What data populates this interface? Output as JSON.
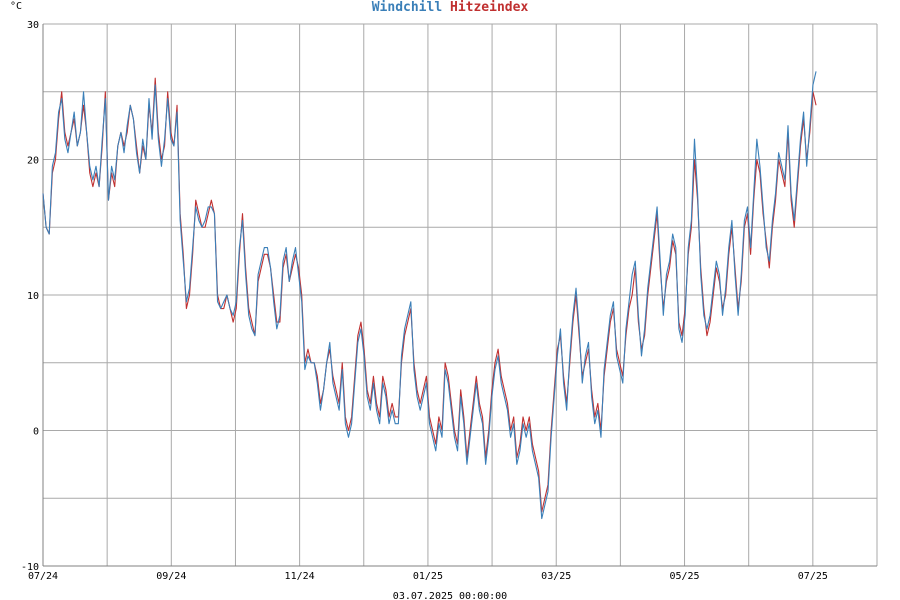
{
  "chart_data": {
    "type": "line",
    "title_parts": [
      {
        "text": "Windchill",
        "color": "#3a7fb8"
      },
      {
        "text": "Hitzeindex",
        "color": "#c03030"
      }
    ],
    "ylabel": "°C",
    "ylim": [
      -10,
      30
    ],
    "yticks": [
      -10,
      0,
      10,
      20,
      30
    ],
    "x_tick_labels": [
      "07/24",
      "09/24",
      "11/24",
      "01/25",
      "03/25",
      "05/25",
      "07/25"
    ],
    "x_range": [
      "2024-07",
      "2025-08"
    ],
    "footer": "03.07.2025 00:00:00",
    "grid": true,
    "colors": {
      "windchill": "#3a7fb8",
      "heatindex": "#c03030",
      "grid": "#a9a9a9",
      "axis": "#808080"
    },
    "series": [
      {
        "name": "Hitzeindex",
        "color": "#c03030",
        "values": [
          17.5,
          15,
          14.5,
          19,
          20,
          23,
          25,
          22,
          21,
          22,
          23,
          21,
          22,
          24,
          22,
          19,
          18,
          19,
          18,
          21,
          25,
          17,
          19,
          18,
          21,
          22,
          21,
          22,
          24,
          23,
          21,
          19,
          21,
          20,
          24,
          22,
          26,
          22,
          20,
          21,
          25,
          22,
          21,
          24,
          16,
          13,
          9,
          10,
          13,
          17,
          16,
          15,
          15,
          16,
          17,
          16,
          10,
          9,
          9,
          10,
          9,
          8,
          9,
          13,
          16,
          12,
          9,
          8,
          7,
          11,
          12,
          13,
          13,
          12,
          10,
          8,
          8,
          12,
          13,
          11,
          12,
          13,
          12,
          10,
          5,
          6,
          5,
          5,
          4,
          2,
          3,
          5,
          6,
          4,
          3,
          2,
          5,
          1,
          0,
          1,
          4,
          7,
          8,
          6,
          3,
          2,
          4,
          2,
          1,
          4,
          3,
          1,
          2,
          1,
          1,
          5,
          7,
          8,
          9,
          5,
          3,
          2,
          3,
          4,
          1,
          0,
          -1,
          1,
          0,
          5,
          4,
          2,
          0,
          -1,
          3,
          1,
          -2,
          0,
          2,
          4,
          2,
          1,
          -2,
          0,
          3,
          5,
          6,
          4,
          3,
          2,
          0,
          1,
          -2,
          -1,
          1,
          0,
          1,
          -1,
          -2,
          -3,
          -6,
          -5,
          -4,
          0,
          3,
          6,
          7,
          4,
          2,
          5,
          8,
          10,
          7,
          4,
          5,
          6,
          3,
          1,
          2,
          0,
          4,
          6,
          8,
          9,
          6,
          5,
          4,
          7,
          9,
          10,
          12,
          8,
          6,
          7,
          10,
          12,
          14,
          16,
          12,
          9,
          11,
          12,
          14,
          13,
          8,
          7,
          9,
          13,
          15,
          20,
          17,
          12,
          9,
          7,
          8,
          10,
          12,
          11,
          9,
          10,
          13,
          15,
          12,
          9,
          11,
          15,
          16,
          13,
          17,
          20,
          19,
          16,
          14,
          12,
          15,
          17,
          20,
          19,
          18,
          22,
          17,
          15,
          18,
          21,
          23,
          20,
          22,
          25,
          24
        ]
      },
      {
        "name": "Windchill",
        "color": "#3a7fb8",
        "values": [
          17.5,
          15,
          14.5,
          19.5,
          20.5,
          23.5,
          24.5,
          21.5,
          20.5,
          22,
          23.5,
          21,
          22,
          25,
          22,
          19.5,
          18.5,
          19.5,
          18,
          21.5,
          24.5,
          17,
          19.5,
          18.5,
          21,
          22,
          20.5,
          22.5,
          24,
          23,
          20.5,
          19,
          21.5,
          20,
          24.5,
          21.5,
          25.5,
          21.5,
          19.5,
          21.5,
          24.5,
          21.5,
          21,
          23.5,
          15.5,
          12.5,
          9.5,
          10.5,
          13.5,
          16.5,
          15.5,
          15,
          15.5,
          16.5,
          16.5,
          16,
          9.5,
          9,
          9.5,
          10,
          9,
          8.5,
          9.5,
          13.5,
          15.5,
          11.5,
          8.5,
          7.5,
          7,
          11.5,
          12.5,
          13.5,
          13.5,
          12,
          9.5,
          7.5,
          8.5,
          12.5,
          13.5,
          11,
          12.5,
          13.5,
          11.5,
          9.5,
          4.5,
          5.5,
          5,
          5,
          3.5,
          1.5,
          3,
          5,
          6.5,
          3.5,
          2.5,
          1.5,
          4.5,
          0.5,
          -0.5,
          0.5,
          3.5,
          6.5,
          7.5,
          5.5,
          2.5,
          1.5,
          3.5,
          1.5,
          0.5,
          3.5,
          2.5,
          0.5,
          1.5,
          0.5,
          0.5,
          5.5,
          7.5,
          8.5,
          9.5,
          4.5,
          2.5,
          1.5,
          2.5,
          3.5,
          0.5,
          -0.5,
          -1.5,
          0.5,
          -0.5,
          4.5,
          3.5,
          1.5,
          -0.5,
          -1.5,
          2.5,
          0.5,
          -2.5,
          -0.5,
          1.5,
          3.5,
          1.5,
          0.5,
          -2.5,
          -0.5,
          2.5,
          4.5,
          5.5,
          3.5,
          2.5,
          1.5,
          -0.5,
          0.5,
          -2.5,
          -1.5,
          0.5,
          -0.5,
          0.5,
          -1.5,
          -2.5,
          -3.5,
          -6.5,
          -5.5,
          -4.5,
          -0.5,
          2.5,
          5.5,
          7.5,
          3.5,
          1.5,
          5.5,
          8.5,
          10.5,
          7.5,
          3.5,
          5.5,
          6.5,
          2.5,
          0.5,
          1.5,
          -0.5,
          4.5,
          6.5,
          8.5,
          9.5,
          5.5,
          4.5,
          3.5,
          7.5,
          9.5,
          11.5,
          12.5,
          8.5,
          5.5,
          7.5,
          10.5,
          12.5,
          14.5,
          16.5,
          12.5,
          8.5,
          11.5,
          12.5,
          14.5,
          13.5,
          7.5,
          6.5,
          8.5,
          13.5,
          15.5,
          21.5,
          17.5,
          11.5,
          8.5,
          7.5,
          8.5,
          10.5,
          12.5,
          11.5,
          8.5,
          10.5,
          13.5,
          15.5,
          11.5,
          8.5,
          11.5,
          15.5,
          16.5,
          13.5,
          17.5,
          21.5,
          19.5,
          16.5,
          13.5,
          12.5,
          15.5,
          17.5,
          20.5,
          19.5,
          18.5,
          22.5,
          17.5,
          15.5,
          18.5,
          21.5,
          23.5,
          19.5,
          22.5,
          25.5,
          26.5
        ]
      }
    ]
  }
}
